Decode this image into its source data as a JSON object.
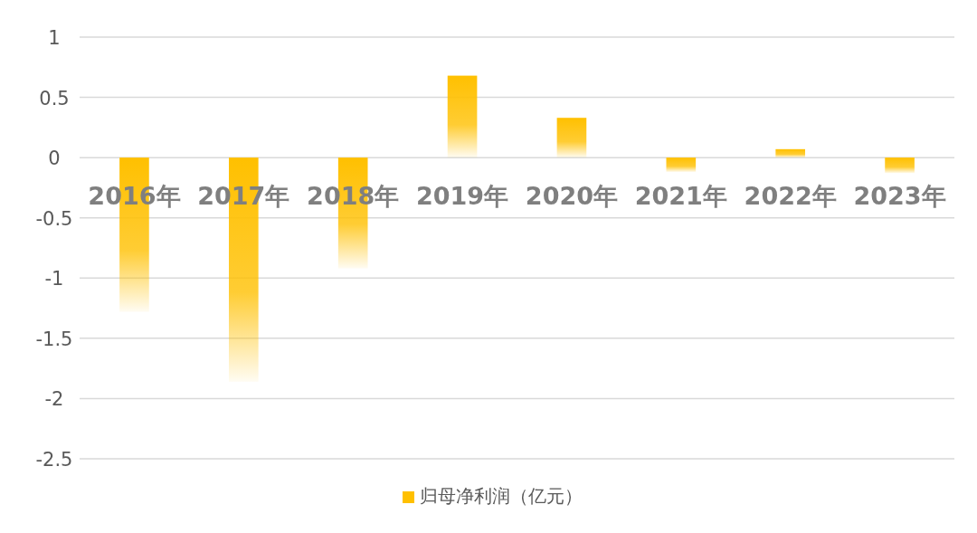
{
  "chart_data": {
    "type": "bar",
    "categories": [
      "2016年",
      "2017年",
      "2018年",
      "2019年",
      "2020年",
      "2021年",
      "2022年",
      "2023年"
    ],
    "series": [
      {
        "name": "归母净利润（亿元）",
        "color": "#ffc000",
        "values": [
          -1.28,
          -1.86,
          -0.92,
          0.68,
          0.33,
          -0.12,
          0.07,
          -0.13
        ]
      }
    ],
    "ylim": [
      -2.5,
      1
    ],
    "yticks": [
      -2.5,
      -2,
      -1.5,
      -1,
      -0.5,
      0,
      0.5,
      1
    ],
    "grid": "y",
    "legend": "bottom"
  }
}
